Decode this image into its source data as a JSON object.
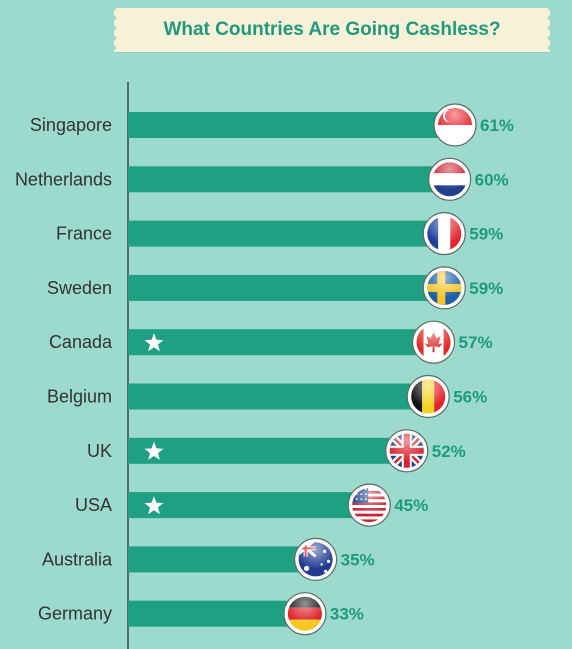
{
  "title": "What Countries Are Going Cashless?",
  "colors": {
    "background": "#9bdacd",
    "bar": "#20a082",
    "value_text": "#1f9a7c",
    "label_text": "#333333",
    "banner": "#f7f1d8"
  },
  "chart_data": {
    "type": "bar",
    "orientation": "horizontal",
    "title": "What Countries Are Going Cashless?",
    "categories": [
      "Singapore",
      "Netherlands",
      "France",
      "Sweden",
      "Canada",
      "Belgium",
      "UK",
      "USA",
      "Australia",
      "Germany"
    ],
    "values": [
      61,
      60,
      59,
      59,
      57,
      56,
      52,
      45,
      35,
      33
    ],
    "value_labels": [
      "61%",
      "60%",
      "59%",
      "59%",
      "57%",
      "56%",
      "52%",
      "45%",
      "35%",
      "33%"
    ],
    "starred": [
      false,
      false,
      false,
      false,
      true,
      false,
      true,
      true,
      false,
      false
    ],
    "flags": [
      "singapore-flag",
      "netherlands-flag",
      "france-flag",
      "sweden-flag",
      "canada-flag",
      "belgium-flag",
      "uk-flag",
      "usa-flag",
      "australia-flag",
      "germany-flag"
    ],
    "xlim": [
      0,
      61
    ],
    "grid": false,
    "legend": "none"
  }
}
